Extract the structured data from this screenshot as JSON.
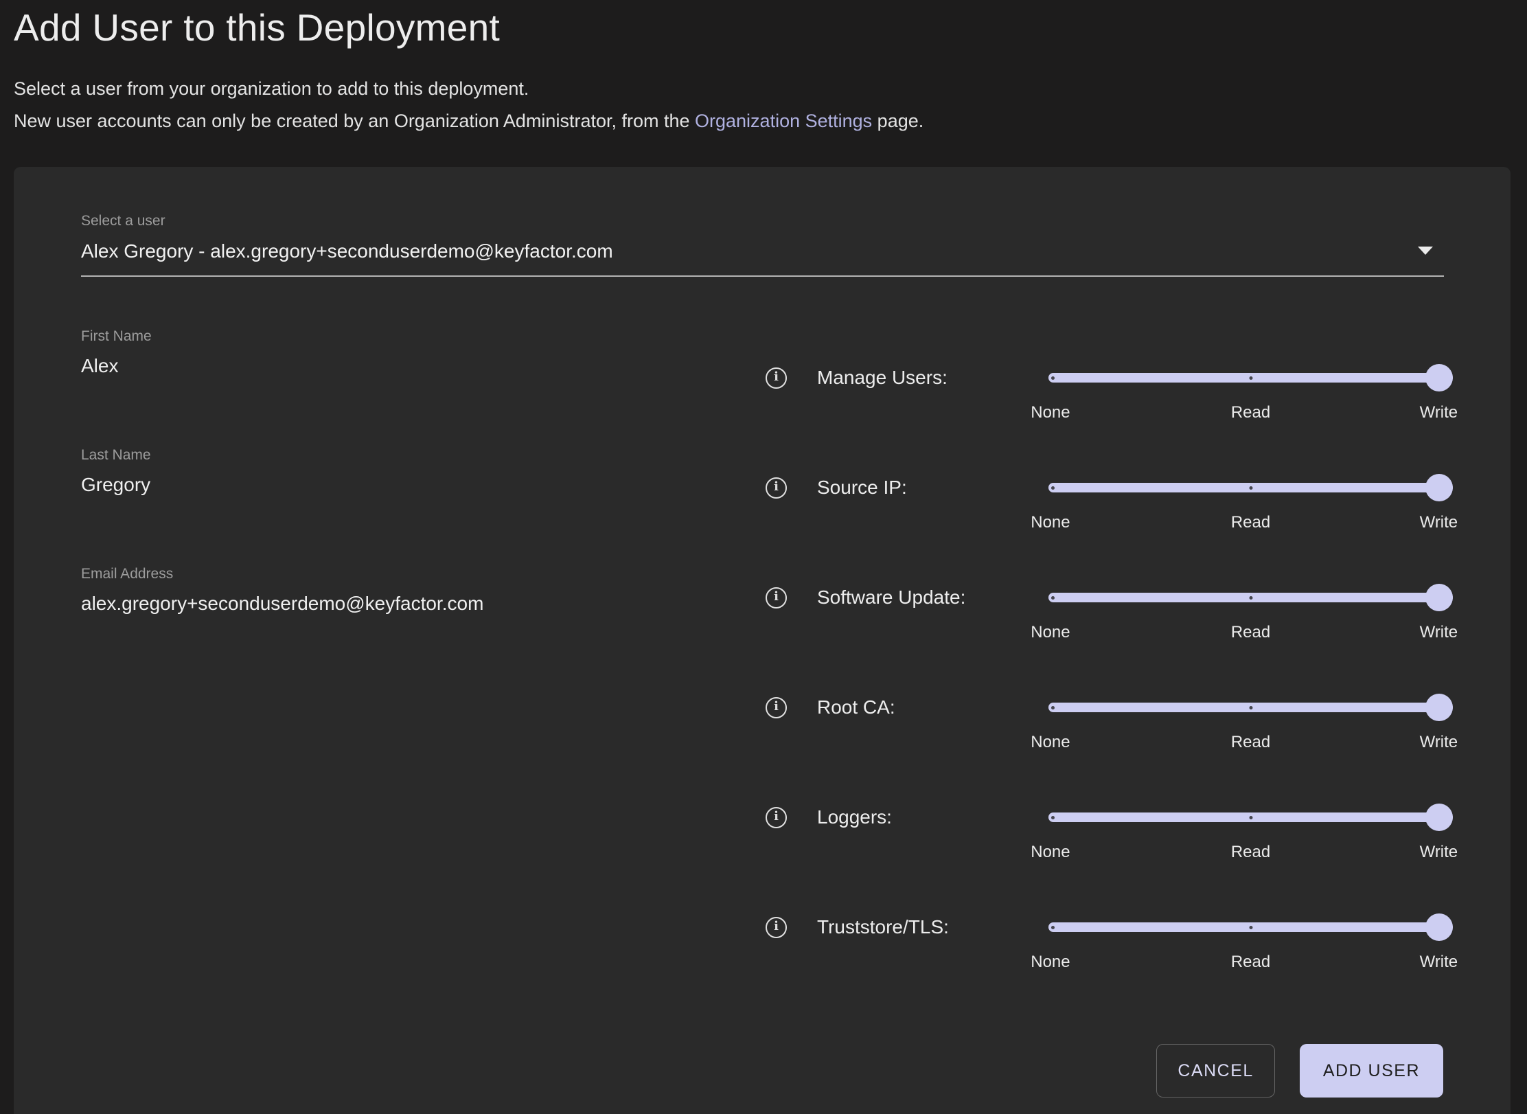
{
  "page": {
    "title": "Add User to this Deployment",
    "description_line1": "Select a user from your organization to add to this deployment.",
    "description_line2_prefix": "New user accounts can only be created by an Organization Administrator, from the ",
    "description_link": "Organization Settings",
    "description_line2_suffix": " page."
  },
  "form": {
    "select_user": {
      "label": "Select a user",
      "value": "Alex Gregory - alex.gregory+seconduserdemo@keyfactor.com"
    },
    "fields": [
      {
        "label": "First Name",
        "value": "Alex"
      },
      {
        "label": "Last Name",
        "value": "Gregory"
      },
      {
        "label": "Email Address",
        "value": "alex.gregory+seconduserdemo@keyfactor.com"
      }
    ]
  },
  "permissions": {
    "scale_labels": [
      "None",
      "Read",
      "Write"
    ],
    "items": [
      {
        "label": "Manage Users:",
        "value": "Write"
      },
      {
        "label": "Source IP:",
        "value": "Write"
      },
      {
        "label": "Software Update:",
        "value": "Write"
      },
      {
        "label": "Root CA:",
        "value": "Write"
      },
      {
        "label": "Loggers:",
        "value": "Write"
      },
      {
        "label": "Truststore/TLS:",
        "value": "Write"
      }
    ]
  },
  "actions": {
    "cancel_label": "CANCEL",
    "add_user_label": "ADD USER"
  },
  "colors": {
    "accent": "#cdcef2",
    "link": "#b0b1e0",
    "page_bg": "#1d1c1c",
    "card_bg": "#2a2a2a"
  }
}
